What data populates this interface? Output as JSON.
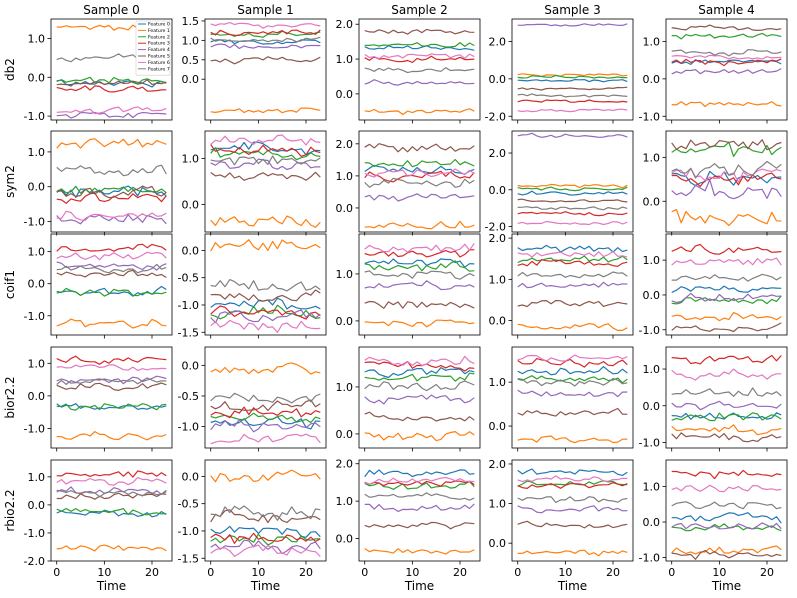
{
  "chart_data": {
    "type": "line",
    "layout": "grid",
    "columns": [
      "Sample 0",
      "Sample 1",
      "Sample 2",
      "Sample 3",
      "Sample 4"
    ],
    "rows": [
      "db2",
      "sym2",
      "coif1",
      "bior2.2",
      "rbio2.2"
    ],
    "xlabel": "Time",
    "x": [
      0,
      1,
      2,
      3,
      4,
      5,
      6,
      7,
      8,
      9,
      10,
      11,
      12,
      13,
      14,
      15,
      16,
      17,
      18,
      19,
      20,
      21,
      22,
      23
    ],
    "xlim": [
      -1.2,
      24.2
    ],
    "xticks": [
      0,
      10,
      20
    ],
    "legend": {
      "entries": [
        "Feature 0",
        "Feature 1",
        "Feature 2",
        "Feature 3",
        "Feature 4",
        "Feature 5",
        "Feature 6",
        "Feature 7"
      ],
      "placement": "upper-right of top-left panel"
    },
    "series_colors": [
      "#1f77b4",
      "#ff7f0e",
      "#2ca02c",
      "#d62728",
      "#9467bd",
      "#8c564b",
      "#e377c2",
      "#7f7f7f"
    ],
    "panels": [
      [
        {
          "ylim": [
            -1.1,
            1.5
          ],
          "yticks": [
            -1.0,
            0.0,
            1.0
          ],
          "yticklabels": [
            "-1.0",
            "0.0",
            "1.0"
          ],
          "baselines": [
            -0.15,
            1.3,
            -0.1,
            -0.3,
            -0.95,
            -0.15,
            -0.85,
            0.5
          ],
          "amp": 0.07
        },
        {
          "ylim": [
            -1.05,
            1.55
          ],
          "yticks": [
            0.0,
            0.5,
            1.0,
            1.5
          ],
          "yticklabels": [
            "0.0",
            "0.5",
            "1.0",
            "1.5"
          ],
          "baselines": [
            0.95,
            -0.8,
            1.15,
            1.2,
            0.85,
            0.5,
            1.4,
            1.0
          ],
          "amp": 0.06
        },
        {
          "ylim": [
            -0.75,
            2.15
          ],
          "yticks": [
            0.0,
            1.0,
            2.0
          ],
          "yticklabels": [
            "0.0",
            "1.0",
            "2.0"
          ],
          "baselines": [
            1.3,
            -0.5,
            1.4,
            1.0,
            0.3,
            1.8,
            1.1,
            0.7
          ],
          "amp": 0.06
        },
        {
          "ylim": [
            -2.2,
            3.2
          ],
          "yticks": [
            -2.0,
            0.0,
            2.0
          ],
          "yticklabels": [
            "-2.0",
            "0.0",
            "2.0"
          ],
          "baselines": [
            -0.1,
            0.2,
            0.1,
            -1.2,
            2.9,
            -0.5,
            -1.7,
            -0.9
          ],
          "amp": 0.06
        },
        {
          "ylim": [
            -1.1,
            1.6
          ],
          "yticks": [
            -1.0,
            0.0,
            1.0
          ],
          "yticklabels": [
            "-1.0",
            "0.0",
            "1.0"
          ],
          "baselines": [
            0.45,
            -0.7,
            1.15,
            0.45,
            0.2,
            1.35,
            0.6,
            0.7
          ],
          "amp": 0.06
        }
      ],
      [
        {
          "ylim": [
            -1.3,
            1.6
          ],
          "yticks": [
            -1.0,
            0.0,
            1.0
          ],
          "yticklabels": [
            "-1.0",
            "0.0",
            "1.0"
          ],
          "baselines": [
            -0.15,
            1.25,
            -0.1,
            -0.3,
            -0.95,
            -0.15,
            -0.85,
            0.45
          ],
          "amp": 0.12
        },
        {
          "ylim": [
            -0.6,
            1.6
          ],
          "yticks": [
            0.0,
            1.0
          ],
          "yticklabels": [
            "0.0",
            "1.0"
          ],
          "baselines": [
            1.2,
            -0.35,
            1.1,
            1.2,
            0.85,
            0.6,
            1.4,
            1.0
          ],
          "amp": 0.1
        },
        {
          "ylim": [
            -0.75,
            2.4
          ],
          "yticks": [
            0.0,
            1.0,
            2.0
          ],
          "yticklabels": [
            "0.0",
            "1.0",
            "2.0"
          ],
          "baselines": [
            1.2,
            -0.5,
            1.4,
            1.0,
            0.35,
            1.9,
            1.1,
            0.8
          ],
          "amp": 0.12
        },
        {
          "ylim": [
            -2.3,
            3.2
          ],
          "yticks": [
            -2.0,
            0.0,
            2.0
          ],
          "yticklabels": [
            "-2.0",
            "0.0",
            "2.0"
          ],
          "baselines": [
            -0.2,
            0.2,
            0.05,
            -1.3,
            2.95,
            -0.6,
            -1.8,
            -1.0
          ],
          "amp": 0.08
        },
        {
          "ylim": [
            -0.7,
            1.6
          ],
          "yticks": [
            0.0,
            1.0
          ],
          "yticklabels": [
            "0.0",
            "1.0"
          ],
          "baselines": [
            0.55,
            -0.35,
            1.15,
            0.55,
            0.2,
            1.3,
            0.6,
            0.75
          ],
          "amp": 0.15
        }
      ],
      [
        {
          "ylim": [
            -1.6,
            1.55
          ],
          "yticks": [
            -1.0,
            0.0,
            1.0
          ],
          "yticklabels": [
            "-1.0",
            "0.0",
            "1.0"
          ],
          "baselines": [
            -0.25,
            -1.25,
            -0.3,
            1.1,
            0.55,
            0.3,
            0.85,
            0.45
          ],
          "amp": 0.1
        },
        {
          "ylim": [
            -1.55,
            0.3
          ],
          "yticks": [
            -1.5,
            -1.0,
            -0.5,
            0.0
          ],
          "yticklabels": [
            "-1.5",
            "-1.0",
            "-0.5",
            "0.0"
          ],
          "baselines": [
            -1.0,
            0.05,
            -1.15,
            -1.15,
            -1.25,
            -0.85,
            -1.4,
            -0.65
          ],
          "amp": 0.09
        },
        {
          "ylim": [
            -0.3,
            1.85
          ],
          "yticks": [
            0.0,
            1.0
          ],
          "yticklabels": [
            "0.0",
            "1.0"
          ],
          "baselines": [
            1.25,
            -0.05,
            1.15,
            1.45,
            0.75,
            0.35,
            1.55,
            1.0
          ],
          "amp": 0.08
        },
        {
          "ylim": [
            -0.35,
            2.1
          ],
          "yticks": [
            0.0,
            1.0,
            2.0
          ],
          "yticklabels": [
            "0.0",
            "1.0",
            "2.0"
          ],
          "baselines": [
            1.75,
            -0.15,
            1.5,
            1.4,
            0.85,
            0.4,
            1.6,
            1.1
          ],
          "amp": 0.07
        },
        {
          "ylim": [
            -1.15,
            1.75
          ],
          "yticks": [
            -1.0,
            0.0,
            1.0
          ],
          "yticklabels": [
            "-1.0",
            "0.0",
            "1.0"
          ],
          "baselines": [
            0.15,
            -0.6,
            -0.15,
            1.3,
            -0.1,
            -0.95,
            0.95,
            0.5
          ],
          "amp": 0.1
        }
      ],
      [
        {
          "ylim": [
            -1.6,
            1.5
          ],
          "yticks": [
            -1.0,
            0.0,
            1.0
          ],
          "yticklabels": [
            "-1.0",
            "0.0",
            "1.0"
          ],
          "baselines": [
            -0.35,
            -1.25,
            -0.35,
            1.1,
            0.5,
            0.3,
            0.85,
            0.45
          ],
          "amp": 0.1
        },
        {
          "ylim": [
            -1.35,
            0.3
          ],
          "yticks": [
            -1.0,
            -0.5,
            0.0
          ],
          "yticklabels": [
            "-1.0",
            "-0.5",
            "0.0"
          ],
          "baselines": [
            -0.95,
            -0.05,
            -0.85,
            -0.75,
            -1.0,
            -0.65,
            -1.2,
            -0.55
          ],
          "amp": 0.07
        },
        {
          "ylim": [
            -0.3,
            1.85
          ],
          "yticks": [
            0.0,
            1.0
          ],
          "yticklabels": [
            "0.0",
            "1.0"
          ],
          "baselines": [
            1.3,
            -0.05,
            1.2,
            1.45,
            0.75,
            0.35,
            1.55,
            1.0
          ],
          "amp": 0.08
        },
        {
          "ylim": [
            -0.5,
            1.8
          ],
          "yticks": [
            0.0,
            1.0
          ],
          "yticklabels": [
            "0.0",
            "1.0"
          ],
          "baselines": [
            1.25,
            -0.3,
            1.05,
            1.45,
            0.75,
            0.3,
            1.55,
            1.0
          ],
          "amp": 0.07
        },
        {
          "ylim": [
            -1.15,
            1.6
          ],
          "yticks": [
            -1.0,
            0.0,
            1.0
          ],
          "yticklabels": [
            "-1.0",
            "0.0",
            "1.0"
          ],
          "baselines": [
            -0.3,
            -0.65,
            -0.3,
            1.25,
            0.0,
            -0.85,
            0.85,
            0.35
          ],
          "amp": 0.1
        }
      ],
      [
        {
          "ylim": [
            -2.0,
            1.6
          ],
          "yticks": [
            -2.0,
            -1.0,
            0.0,
            1.0
          ],
          "yticklabels": [
            "-2.0",
            "-1.0",
            "0.0",
            "1.0"
          ],
          "baselines": [
            -0.3,
            -1.55,
            -0.25,
            1.1,
            0.5,
            0.3,
            0.85,
            0.45
          ],
          "amp": 0.1
        },
        {
          "ylim": [
            -1.55,
            0.3
          ],
          "yticks": [
            -1.5,
            -1.0,
            -0.5,
            0.0
          ],
          "yticklabels": [
            "-1.5",
            "-1.0",
            "-0.5",
            "0.0"
          ],
          "baselines": [
            -1.0,
            0.0,
            -1.15,
            -1.15,
            -1.3,
            -0.75,
            -1.35,
            -0.65
          ],
          "amp": 0.09
        },
        {
          "ylim": [
            -0.6,
            2.1
          ],
          "yticks": [
            0.0,
            1.0,
            2.0
          ],
          "yticklabels": [
            "0.0",
            "1.0",
            "2.0"
          ],
          "baselines": [
            1.75,
            -0.35,
            1.4,
            1.5,
            0.85,
            0.35,
            1.55,
            1.1
          ],
          "amp": 0.08
        },
        {
          "ylim": [
            -0.45,
            2.1
          ],
          "yticks": [
            0.0,
            1.0,
            2.0
          ],
          "yticklabels": [
            "0.0",
            "1.0",
            "2.0"
          ],
          "baselines": [
            1.8,
            -0.25,
            1.5,
            1.45,
            0.85,
            0.45,
            1.6,
            1.1
          ],
          "amp": 0.07
        },
        {
          "ylim": [
            -1.1,
            1.75
          ],
          "yticks": [
            -1.0,
            0.0,
            1.0
          ],
          "yticklabels": [
            "-1.0",
            "0.0",
            "1.0"
          ],
          "baselines": [
            0.1,
            -0.8,
            -0.15,
            1.35,
            -0.1,
            -0.9,
            0.95,
            0.5
          ],
          "amp": 0.1
        }
      ]
    ]
  }
}
